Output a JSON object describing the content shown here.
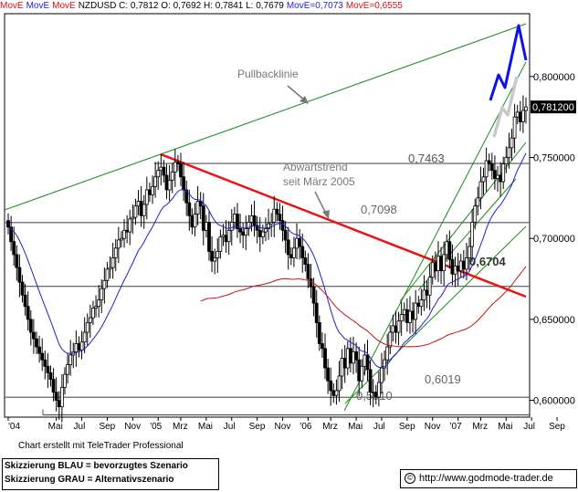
{
  "header": {
    "ind1": "MovE",
    "ind2": "MovE",
    "ind3": "MovE",
    "title": "NZDUSD C: 0,7812 O: 0,7692 H: 0,7841 L: 0,7679",
    "mov_blue": "MovE=0,7073",
    "mov_red": "MovE=0,6555"
  },
  "footer": {
    "credit": "Chart erstellt mit TeleTrader Professional",
    "legend_blue": "Skizzierung BLAU = bevorzugtes Szenario",
    "legend_grey": "Skizzierung GRAU = Alternativszenario",
    "url": "http://www.godmode-trader.de"
  },
  "colors": {
    "candle": "#000000",
    "ma_blue": "#1f1fcf",
    "ma_red": "#cc1111",
    "trend_red": "#ee1111",
    "channel_green": "#1a8a1a",
    "scenario_blue": "#1010ee",
    "scenario_grey": "#c8c8c8",
    "grid": "#000000"
  },
  "chart_data": {
    "type": "candlestick",
    "ylim": [
      0.5896,
      0.8388
    ],
    "y_ticks": [
      "0,600000",
      "0,650000",
      "0,700000",
      "0,750000",
      "0,800000"
    ],
    "y_tick_values": [
      0.6,
      0.65,
      0.7,
      0.75,
      0.8
    ],
    "last_price_label": "0,781200",
    "last_price": 0.7812,
    "x_ticks": [
      "'04",
      "Mai",
      "Jul",
      "Sep",
      "Nov",
      "'05",
      "Mrz",
      "Mai",
      "Jul",
      "Sep",
      "Nov",
      "'06",
      "Mrz",
      "Mai",
      "Jul",
      "Sep",
      "Nov",
      "'07",
      "Mrz",
      "Mai",
      "Jul",
      "Sep"
    ],
    "x_tick_idx": [
      0,
      17,
      26,
      35,
      44,
      53,
      61,
      70,
      79,
      88,
      97,
      106,
      114,
      123,
      132,
      141,
      150,
      159,
      167,
      176,
      185,
      194
    ],
    "horizontal_levels": [
      {
        "label": "0,7463",
        "value": 0.7463
      },
      {
        "label": "0,7098",
        "value": 0.7098
      },
      {
        "label": "0,6704",
        "value": 0.6704
      },
      {
        "label": "0,6019",
        "value": 0.6019
      },
      {
        "label": "0,5910",
        "value": 0.591
      }
    ],
    "annotations": [
      {
        "text": "Pullbacklinie"
      },
      {
        "text": "Abwärtstrend"
      },
      {
        "text": "seit März 2005"
      }
    ],
    "candles": {
      "comment_free": true,
      "close": [
        0.707,
        0.698,
        0.69,
        0.682,
        0.673,
        0.665,
        0.658,
        0.65,
        0.642,
        0.638,
        0.633,
        0.629,
        0.625,
        0.621,
        0.617,
        0.613,
        0.605,
        0.6,
        0.596,
        0.608,
        0.616,
        0.622,
        0.628,
        0.63,
        0.635,
        0.631,
        0.636,
        0.642,
        0.648,
        0.651,
        0.657,
        0.658,
        0.662,
        0.669,
        0.674,
        0.681,
        0.682,
        0.688,
        0.694,
        0.699,
        0.7,
        0.705,
        0.704,
        0.712,
        0.713,
        0.72,
        0.723,
        0.714,
        0.721,
        0.73,
        0.727,
        0.732,
        0.738,
        0.742,
        0.744,
        0.739,
        0.73,
        0.736,
        0.741,
        0.747,
        0.746,
        0.738,
        0.73,
        0.722,
        0.714,
        0.707,
        0.715,
        0.723,
        0.72,
        0.705,
        0.71,
        0.692,
        0.686,
        0.688,
        0.692,
        0.701,
        0.702,
        0.698,
        0.705,
        0.71,
        0.715,
        0.706,
        0.704,
        0.702,
        0.706,
        0.71,
        0.714,
        0.708,
        0.705,
        0.701,
        0.704,
        0.706,
        0.709,
        0.71,
        0.718,
        0.715,
        0.711,
        0.705,
        0.699,
        0.69,
        0.688,
        0.694,
        0.7,
        0.695,
        0.688,
        0.684,
        0.675,
        0.67,
        0.66,
        0.648,
        0.635,
        0.632,
        0.62,
        0.612,
        0.606,
        0.603,
        0.606,
        0.615,
        0.626,
        0.62,
        0.632,
        0.623,
        0.63,
        0.625,
        0.612,
        0.621,
        0.628,
        0.619,
        0.605,
        0.605,
        0.602,
        0.611,
        0.62,
        0.625,
        0.633,
        0.642,
        0.646,
        0.642,
        0.649,
        0.653,
        0.656,
        0.648,
        0.655,
        0.65,
        0.66,
        0.658,
        0.662,
        0.668,
        0.665,
        0.676,
        0.685,
        0.68,
        0.689,
        0.68,
        0.69,
        0.698,
        0.687,
        0.678,
        0.683,
        0.68,
        0.686,
        0.681,
        0.688,
        0.695,
        0.71,
        0.72,
        0.725,
        0.735,
        0.738,
        0.748,
        0.746,
        0.742,
        0.737,
        0.739,
        0.735,
        0.746,
        0.75,
        0.756,
        0.762,
        0.775,
        0.778,
        0.772,
        0.779,
        0.7812
      ]
    },
    "series": [
      {
        "name": "MovE=0,7073",
        "color": "#1f1fcf"
      },
      {
        "name": "MovE=0,6555",
        "color": "#cc1111"
      }
    ]
  }
}
